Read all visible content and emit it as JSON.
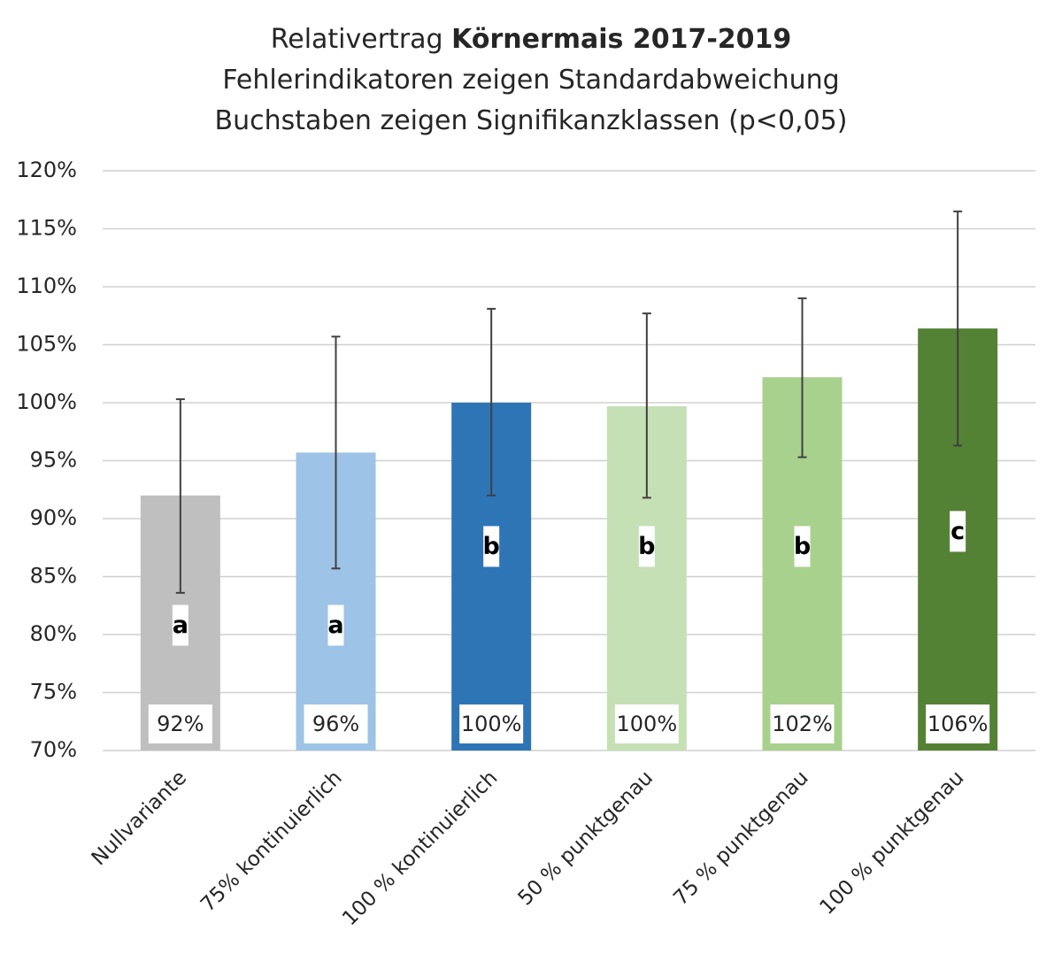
{
  "chart_data": {
    "type": "bar",
    "title": {
      "line1_prefix": "Relativertrag ",
      "line1_bold": "Körnermais 2017-2019",
      "line2": "Fehlerindikatoren zeigen Standardabweichung",
      "line3": "Buchstaben zeigen Signifikanzklassen (p<0,05)"
    },
    "ylim": [
      0.7,
      1.2
    ],
    "yticks": [
      0.7,
      0.75,
      0.8,
      0.85,
      0.9,
      0.95,
      1.0,
      1.05,
      1.1,
      1.15,
      1.2
    ],
    "ytick_labels": [
      "70%",
      "75%",
      "80%",
      "85%",
      "90%",
      "95%",
      "100%",
      "105%",
      "110%",
      "115%",
      "120%"
    ],
    "grid": true,
    "categories": [
      "Nullvariante",
      "75% kontinuierlich",
      "100 % kontinuierlich",
      "50 % punktgenau",
      "75 % punktgenau",
      "100 % punktgenau"
    ],
    "values": [
      0.92,
      0.957,
      1.0,
      0.997,
      1.022,
      1.064
    ],
    "error_low": [
      0.836,
      0.857,
      0.92,
      0.918,
      0.953,
      0.963
    ],
    "error_high": [
      1.003,
      1.057,
      1.081,
      1.077,
      1.09,
      1.165
    ],
    "data_labels": [
      "92%",
      "96%",
      "100%",
      "100%",
      "102%",
      "106%"
    ],
    "significance": [
      "a",
      "a",
      "b",
      "b",
      "b",
      "c"
    ],
    "significance_level": [
      0.808,
      0.808,
      0.876,
      0.876,
      0.876,
      0.889
    ],
    "colors": [
      "#bfbfbf",
      "#9dc3e6",
      "#2e75b6",
      "#c5e0b4",
      "#a9d18e",
      "#548235"
    ]
  }
}
